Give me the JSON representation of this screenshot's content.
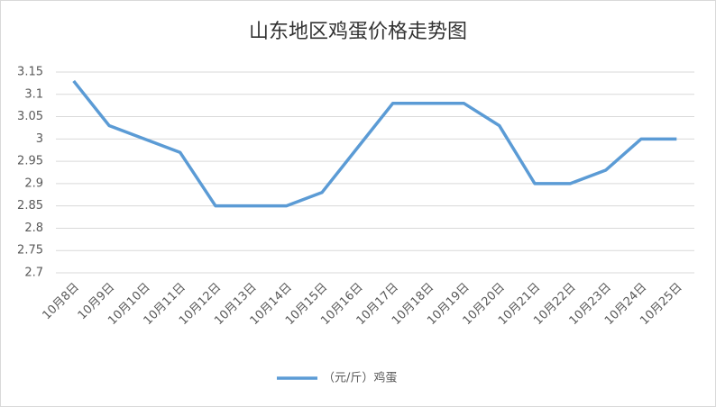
{
  "chart_data": {
    "type": "line",
    "title": "山东地区鸡蛋价格走势图",
    "categories": [
      "10月8日",
      "10月9日",
      "10月10日",
      "10月11日",
      "10月12日",
      "10月13日",
      "10月14日",
      "10月15日",
      "10月16日",
      "10月17日",
      "10月18日",
      "10月19日",
      "10月20日",
      "10月21日",
      "10月22日",
      "10月23日",
      "10月24日",
      "10月25日"
    ],
    "series": [
      {
        "name": "（元/斤）鸡蛋",
        "color": "#5b9bd5",
        "values": [
          3.13,
          3.03,
          3.0,
          2.97,
          2.85,
          2.85,
          2.85,
          2.88,
          2.98,
          3.08,
          3.08,
          3.08,
          3.03,
          2.9,
          2.9,
          2.93,
          3.0,
          3.0
        ]
      }
    ],
    "ylim": [
      2.7,
      3.15
    ],
    "yticks": [
      2.7,
      2.75,
      2.8,
      2.85,
      2.9,
      2.95,
      3,
      3.05,
      3.1,
      3.15
    ],
    "grid": true,
    "legend": "bottom"
  }
}
